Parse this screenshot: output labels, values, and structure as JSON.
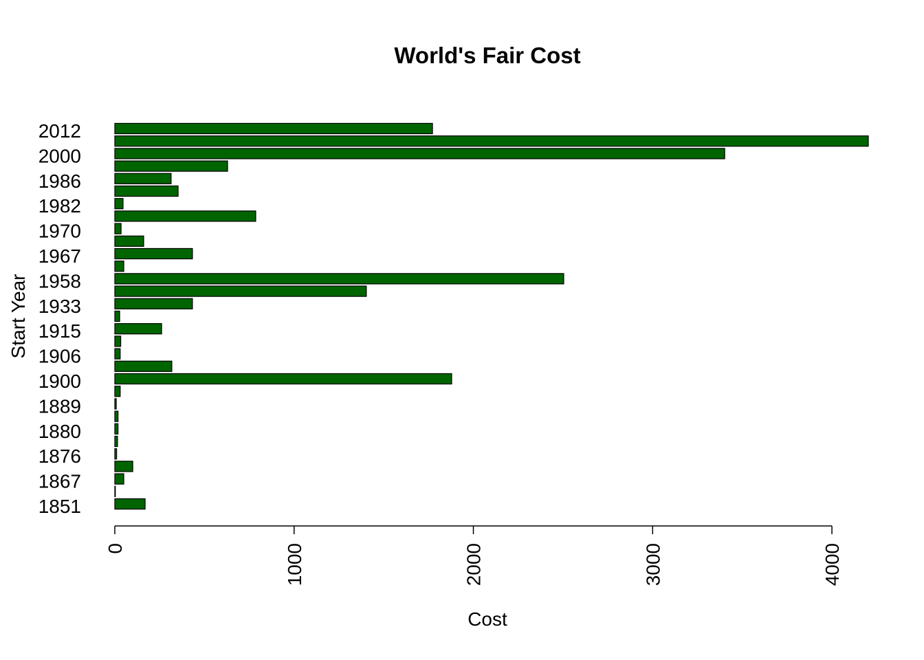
{
  "chart_data": {
    "type": "bar",
    "orientation": "horizontal",
    "title": "World's Fair Cost",
    "x_label": "Cost",
    "y_label": "Start Year",
    "categories": [
      "1851",
      null,
      "1867",
      null,
      "1876",
      null,
      "1880",
      null,
      "1889",
      null,
      "1900",
      null,
      "1906",
      null,
      "1915",
      null,
      "1933",
      null,
      "1958",
      null,
      "1967",
      null,
      "1970",
      null,
      "1982",
      null,
      "1986",
      null,
      "2000",
      null,
      "2012"
    ],
    "values": [
      169,
      3,
      50,
      100,
      10,
      15,
      18,
      18,
      8,
      30,
      1879,
      318,
      30,
      33,
      261,
      27,
      433,
      1403,
      2504,
      50,
      433,
      161,
      35,
      786,
      46,
      353,
      314,
      629,
      3402,
      4203,
      1772
    ],
    "color": "#006400",
    "xlim": [
      0,
      4203
    ],
    "xticks": [
      0,
      1000,
      2000,
      3000,
      4000
    ],
    "grid": false
  }
}
